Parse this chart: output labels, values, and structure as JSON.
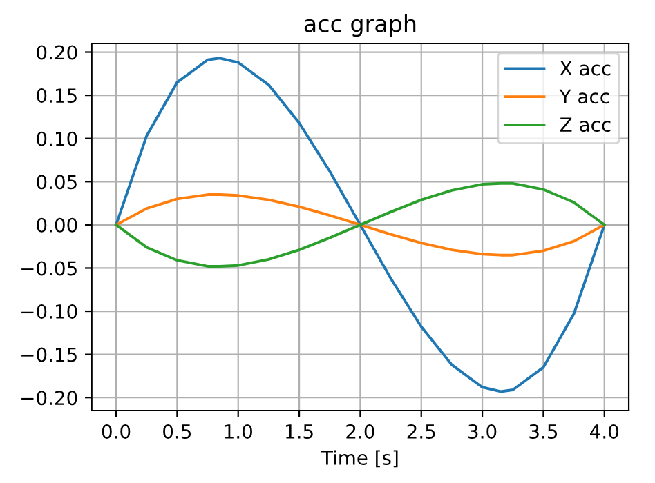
{
  "chart_data": {
    "type": "line",
    "title": "acc graph",
    "xlabel": "Time [s]",
    "x": [
      0,
      0.25,
      0.5,
      0.75,
      0.85,
      1,
      1.25,
      1.5,
      1.75,
      2,
      2.25,
      2.5,
      2.75,
      3,
      3.15,
      3.25,
      3.5,
      3.75,
      4
    ],
    "series": [
      {
        "name": "X acc",
        "color": "#1f77b4",
        "values": [
          0,
          0.103,
          0.165,
          0.191,
          0.193,
          0.188,
          0.162,
          0.118,
          0.062,
          0,
          -0.062,
          -0.118,
          -0.162,
          -0.188,
          -0.193,
          -0.191,
          -0.165,
          -0.103,
          0
        ]
      },
      {
        "name": "Y acc",
        "color": "#ff7f0e",
        "values": [
          0,
          0.019,
          0.03,
          0.035,
          0.035,
          0.034,
          0.029,
          0.021,
          0.011,
          0,
          -0.011,
          -0.021,
          -0.029,
          -0.034,
          -0.035,
          -0.035,
          -0.03,
          -0.019,
          0
        ]
      },
      {
        "name": "Z acc",
        "color": "#2ca02c",
        "values": [
          0,
          -0.026,
          -0.041,
          -0.048,
          -0.048,
          -0.047,
          -0.04,
          -0.029,
          -0.015,
          0,
          0.015,
          0.029,
          0.04,
          0.047,
          0.048,
          0.048,
          0.041,
          0.026,
          0
        ]
      }
    ],
    "xlim": [
      -0.2,
      4.2
    ],
    "ylim": [
      -0.215,
      0.21
    ],
    "xticks": [
      {
        "value": 0,
        "label": "0.0"
      },
      0.5,
      {
        "value": 1,
        "label": "1.0"
      },
      1.5,
      {
        "value": 2,
        "label": "2.0"
      },
      2.5,
      {
        "value": 3,
        "label": "3.0"
      },
      3.5,
      {
        "value": 4,
        "label": "4.0"
      }
    ],
    "yticks": [
      {
        "value": -0.2,
        "label": "−0.20"
      },
      {
        "value": -0.15,
        "label": "−0.15"
      },
      {
        "value": -0.1,
        "label": "−0.10"
      },
      {
        "value": -0.05,
        "label": "−0.05"
      },
      {
        "value": 0,
        "label": "0.00"
      },
      {
        "value": 0.05,
        "label": "0.05"
      },
      {
        "value": 0.1,
        "label": "0.10"
      },
      {
        "value": 0.15,
        "label": "0.15"
      },
      {
        "value": 0.2,
        "label": "0.20"
      }
    ],
    "grid": true,
    "legend": "top right",
    "marker": "none",
    "line_style": "solid"
  }
}
